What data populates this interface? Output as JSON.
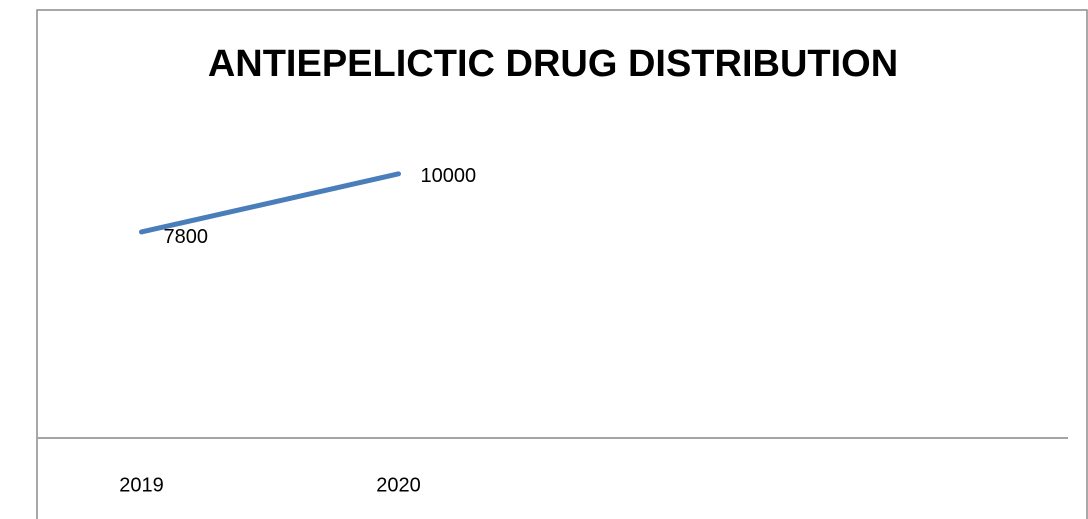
{
  "chart_data": {
    "type": "line",
    "title": "ANTIEPELICTIC DRUG DISTRIBUTION",
    "categories": [
      "2019",
      "2020",
      null,
      null
    ],
    "series": [
      {
        "color": "#4a7ebb",
        "values": [
          7800,
          10000,
          null,
          null
        ]
      }
    ],
    "ylim": [
      0,
      12000
    ],
    "data_labels": true
  }
}
